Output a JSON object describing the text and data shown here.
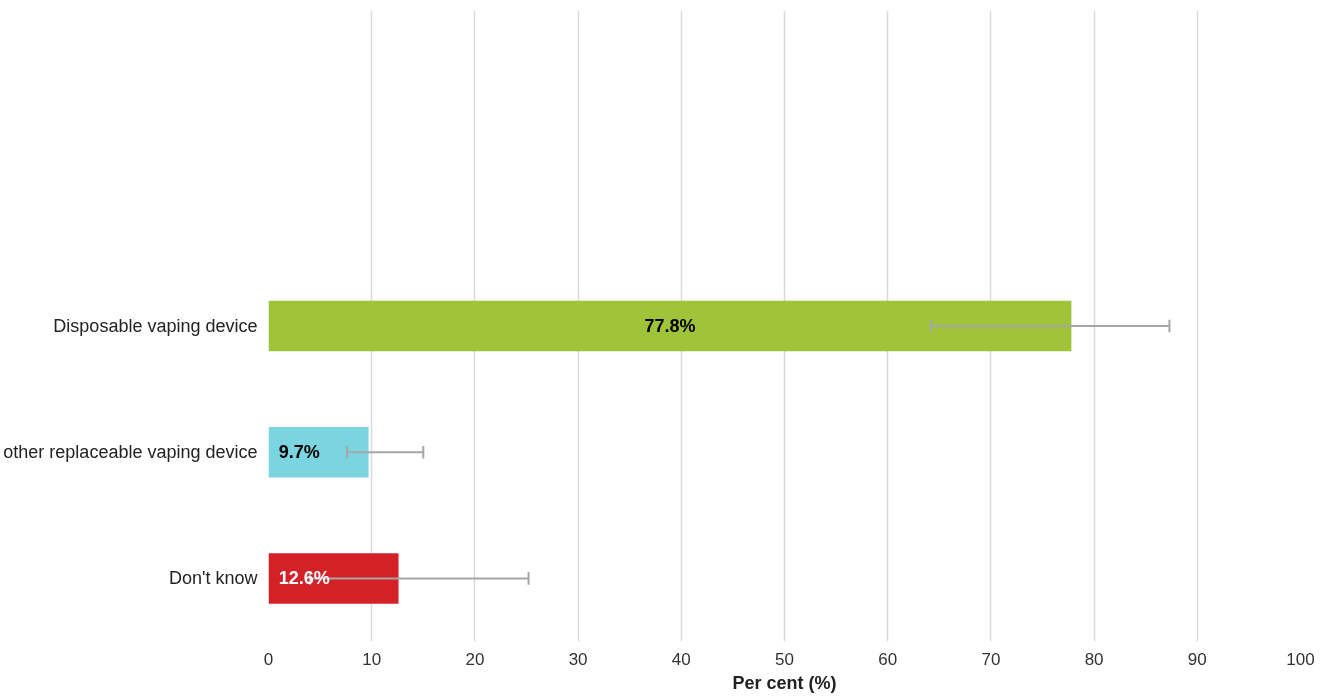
{
  "chart_data": {
    "type": "bar",
    "orientation": "horizontal",
    "xlabel": "Per cent (%)",
    "categories": [
      "Disposable vaping device",
      "other replaceable vaping device",
      "Don't know"
    ],
    "values": [
      77.8,
      9.7,
      12.6
    ],
    "colors": [
      "#a0c439",
      "#7ad5e0",
      "#d42027"
    ],
    "errors": [
      [
        64.2,
        87.3
      ],
      [
        7.6,
        15.0
      ],
      [
        4.0,
        25.2
      ]
    ],
    "value_labels": [
      "77.8%",
      "9.7%",
      "12.6%"
    ],
    "xlim": [
      0,
      100
    ],
    "xticks": [
      0,
      10,
      20,
      30,
      40,
      50,
      60,
      70,
      80,
      90,
      100
    ],
    "grid": "x"
  }
}
